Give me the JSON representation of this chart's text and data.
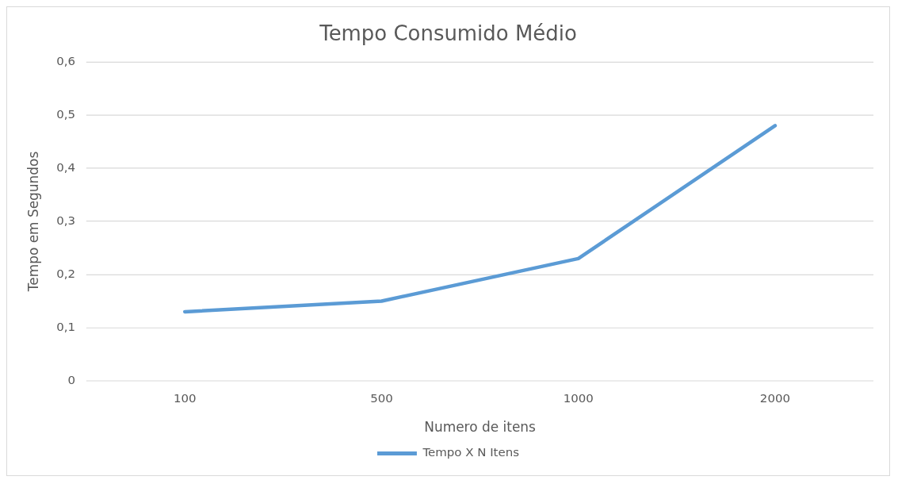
{
  "chart_data": {
    "type": "line",
    "title": "Tempo Consumido Médio",
    "xlabel": "Numero de itens",
    "ylabel": "Tempo em Segundos",
    "categories": [
      "100",
      "500",
      "1000",
      "2000"
    ],
    "series": [
      {
        "name": "Tempo X N Itens",
        "color": "#5b9bd5",
        "values": [
          0.13,
          0.15,
          0.23,
          0.48
        ]
      }
    ],
    "ylim": [
      0,
      0.6
    ],
    "yticks": [
      0,
      {
        "value": 0.1,
        "label": "0,1"
      },
      {
        "value": 0.2,
        "label": "0,2"
      },
      {
        "value": 0.3,
        "label": "0,3"
      },
      {
        "value": 0.4,
        "label": "0,4"
      },
      {
        "value": 0.5,
        "label": "0,5"
      },
      {
        "value": 0.6,
        "label": "0,6"
      }
    ],
    "grid": "y",
    "legend": "bottom",
    "marker": "none",
    "line_style": "solid"
  }
}
